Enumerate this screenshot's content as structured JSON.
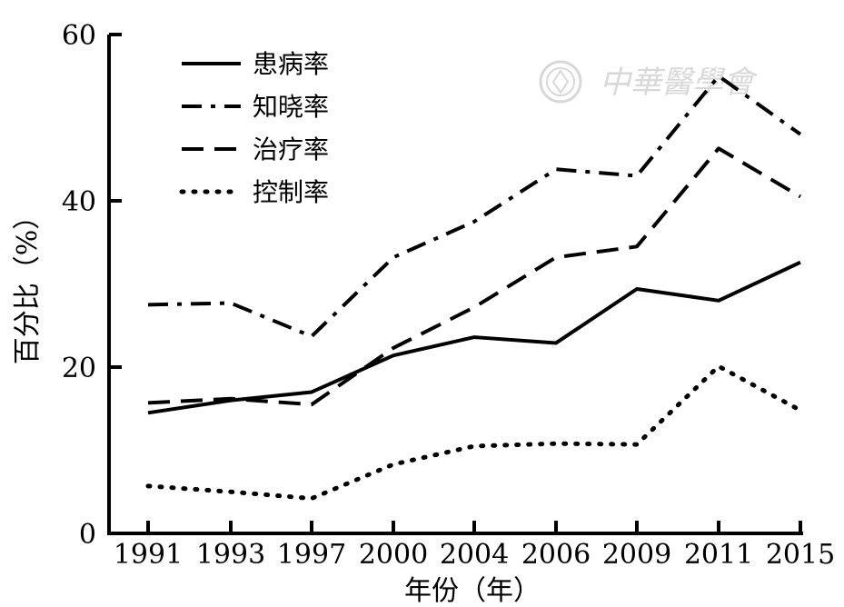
{
  "chart_data": {
    "type": "line",
    "categories": [
      "1991",
      "1993",
      "1997",
      "2000",
      "2004",
      "2006",
      "2009",
      "2011",
      "2015"
    ],
    "series": [
      {
        "name": "患病率",
        "values": [
          14.5,
          16.0,
          17.0,
          21.4,
          23.6,
          22.9,
          29.4,
          28.0,
          32.6
        ],
        "style": "solid"
      },
      {
        "name": "知晓率",
        "values": [
          27.5,
          27.7,
          23.7,
          33.2,
          37.5,
          43.8,
          43.0,
          55.0,
          48.0
        ],
        "style": "dashdot"
      },
      {
        "name": "治疗率",
        "values": [
          15.7,
          16.2,
          15.5,
          22.3,
          27.2,
          33.2,
          34.5,
          46.3,
          40.5
        ],
        "style": "dashed"
      },
      {
        "name": "控制率",
        "values": [
          5.7,
          5.0,
          4.2,
          8.3,
          10.5,
          10.8,
          10.7,
          20.1,
          14.8
        ],
        "style": "dotted"
      }
    ],
    "xlabel": "年份（年）",
    "ylabel": "百分比（%）",
    "ylim": [
      0,
      60
    ],
    "yticks": [
      0,
      20,
      40,
      60
    ],
    "grid": false,
    "legend_position": "top-left",
    "line_color": "#000000"
  },
  "watermark": {
    "text": "中華醫學會",
    "color": "#d8d8d8"
  }
}
